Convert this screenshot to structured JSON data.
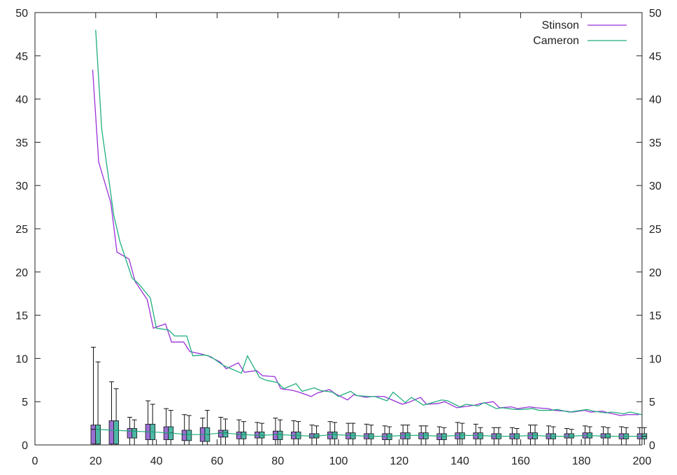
{
  "chart_data": {
    "type": "line",
    "title": "",
    "xlabel": "",
    "ylabel": "",
    "xlim": [
      0,
      200
    ],
    "ylim": [
      0,
      50
    ],
    "xticks": [
      0,
      20,
      40,
      60,
      80,
      100,
      120,
      140,
      160,
      180,
      200
    ],
    "yticks": [
      0,
      5,
      10,
      15,
      20,
      25,
      30,
      35,
      40,
      45,
      50
    ],
    "y2ticks": [
      0,
      5,
      10,
      15,
      20,
      25,
      30,
      35,
      40,
      45,
      50
    ],
    "grid": false,
    "legend_position": "top-right",
    "series": [
      {
        "name": "Stinson",
        "color": "#9b30d9",
        "x": [
          19,
          21,
          25,
          27,
          31,
          33,
          37,
          39,
          43,
          45,
          49,
          51,
          55,
          57,
          61,
          63,
          67,
          69,
          73,
          75,
          79,
          81,
          85,
          87,
          91,
          93,
          97,
          99,
          103,
          105,
          109,
          111,
          115,
          117,
          121,
          123,
          127,
          129,
          133,
          135,
          139,
          141,
          145,
          147,
          151,
          153,
          157,
          159,
          163,
          165,
          169,
          171,
          175,
          177,
          181,
          183,
          187,
          189,
          193,
          195,
          199
        ],
        "y": [
          43.4,
          32.7,
          28.0,
          22.3,
          21.5,
          18.9,
          16.8,
          13.5,
          14.0,
          11.9,
          11.9,
          10.8,
          10.5,
          10.3,
          9.6,
          8.8,
          9.5,
          8.4,
          8.6,
          8.0,
          7.9,
          6.5,
          6.3,
          6.1,
          5.6,
          6.0,
          6.4,
          5.9,
          5.2,
          5.8,
          5.5,
          5.6,
          5.6,
          5.3,
          4.7,
          4.9,
          5.5,
          4.7,
          4.8,
          5.0,
          4.3,
          4.4,
          4.6,
          4.8,
          5.0,
          4.3,
          4.4,
          4.2,
          4.4,
          4.3,
          4.2,
          4.0,
          3.9,
          3.8,
          4.0,
          3.8,
          3.9,
          3.7,
          3.4,
          3.5,
          3.5
        ]
      },
      {
        "name": "Cameron",
        "color": "#1fae7e",
        "x": [
          20,
          22,
          26,
          28,
          32,
          34,
          38,
          40,
          44,
          46,
          50,
          52,
          56,
          58,
          62,
          64,
          68,
          70,
          74,
          76,
          80,
          82,
          86,
          88,
          92,
          94,
          98,
          100,
          104,
          106,
          110,
          112,
          116,
          118,
          122,
          124,
          128,
          130,
          134,
          136,
          140,
          142,
          146,
          148,
          152,
          154,
          158,
          160,
          164,
          166,
          170,
          172,
          176,
          178,
          182,
          184,
          188,
          190,
          194,
          196,
          200
        ],
        "y": [
          48.0,
          36.5,
          26.5,
          23.5,
          19.3,
          18.7,
          17.0,
          13.5,
          13.3,
          12.6,
          12.6,
          10.3,
          10.4,
          10.2,
          9.2,
          8.9,
          8.3,
          10.3,
          7.8,
          7.5,
          7.2,
          6.5,
          7.1,
          6.2,
          6.6,
          6.3,
          6.1,
          5.6,
          6.2,
          5.7,
          5.6,
          5.6,
          5.1,
          6.1,
          4.9,
          5.5,
          4.6,
          4.8,
          5.2,
          5.1,
          4.4,
          4.7,
          4.5,
          4.9,
          4.2,
          4.3,
          4.1,
          4.1,
          4.2,
          4.0,
          4.0,
          4.1,
          3.8,
          3.9,
          4.1,
          3.9,
          3.7,
          3.8,
          3.6,
          3.8,
          3.5
        ]
      }
    ],
    "boxplots": {
      "description_free": true,
      "x": [
        20,
        26,
        32,
        38,
        44,
        50,
        56,
        62,
        68,
        74,
        80,
        86,
        92,
        98,
        104,
        110,
        116,
        122,
        128,
        134,
        140,
        146,
        152,
        158,
        164,
        170,
        176,
        182,
        188,
        194,
        200
      ],
      "q1": [
        0.1,
        0.1,
        0.8,
        0.6,
        0.6,
        0.5,
        0.4,
        0.9,
        0.7,
        0.8,
        0.6,
        0.7,
        0.8,
        0.7,
        0.7,
        0.7,
        0.6,
        0.7,
        0.7,
        0.6,
        0.7,
        0.7,
        0.7,
        0.7,
        0.7,
        0.7,
        0.8,
        0.8,
        0.8,
        0.7,
        0.7
      ],
      "q3": [
        2.3,
        2.8,
        1.9,
        2.4,
        2.1,
        1.7,
        2.0,
        1.7,
        1.5,
        1.5,
        1.6,
        1.5,
        1.3,
        1.5,
        1.4,
        1.3,
        1.3,
        1.4,
        1.4,
        1.3,
        1.4,
        1.4,
        1.3,
        1.3,
        1.4,
        1.3,
        1.3,
        1.4,
        1.3,
        1.3,
        1.3
      ],
      "median": [
        1.8,
        1.7,
        1.6,
        1.5,
        1.4,
        1.2,
        1.2,
        1.4,
        1.2,
        1.1,
        1.2,
        1.1,
        1.0,
        1.2,
        1.1,
        1.0,
        1.0,
        1.1,
        1.1,
        1.0,
        1.1,
        1.1,
        1.0,
        1.0,
        1.1,
        1.0,
        1.0,
        1.1,
        1.0,
        1.0,
        1.0
      ],
      "whisker_high_a": [
        11.3,
        7.3,
        3.2,
        5.1,
        4.2,
        3.5,
        3.1,
        3.2,
        2.9,
        2.6,
        3.1,
        2.8,
        2.3,
        2.7,
        2.5,
        2.4,
        2.2,
        2.3,
        2.2,
        2.1,
        2.6,
        2.4,
        2.0,
        2.0,
        2.3,
        2.2,
        1.9,
        2.2,
        2.1,
        2.1,
        2.0
      ],
      "whisker_high_b": [
        9.6,
        6.5,
        2.9,
        4.7,
        4.0,
        3.4,
        4.0,
        3.0,
        2.7,
        2.5,
        2.9,
        2.7,
        2.2,
        2.6,
        2.5,
        2.3,
        2.1,
        2.3,
        2.2,
        2.0,
        2.5,
        2.0,
        2.0,
        1.9,
        2.3,
        2.1,
        1.8,
        2.1,
        2.0,
        2.0,
        2.0
      ],
      "fill_a": "#9b6fd3",
      "fill_b": "#4fb7a6"
    }
  }
}
